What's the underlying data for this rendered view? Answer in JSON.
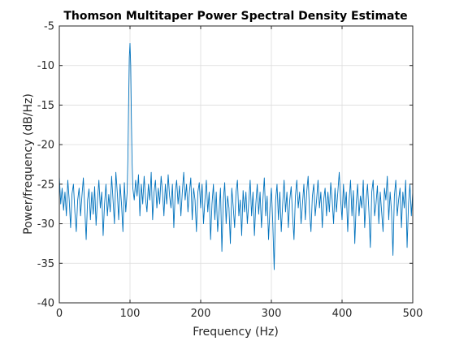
{
  "chart_data": {
    "type": "line",
    "title": "Thomson Multitaper Power Spectral Density Estimate",
    "xlabel": "Frequency (Hz)",
    "ylabel": "Power/frequency (dB/Hz)",
    "xlim": [
      0,
      500
    ],
    "ylim": [
      -40,
      -5
    ],
    "xticks": [
      0,
      100,
      200,
      300,
      400,
      500
    ],
    "yticks": [
      -40,
      -35,
      -30,
      -25,
      -20,
      -15,
      -10,
      -5
    ],
    "xtick_labels": [
      "0",
      "100",
      "200",
      "300",
      "400",
      "500"
    ],
    "ytick_labels": [
      "-40",
      "-35",
      "-30",
      "-25",
      "-20",
      "-15",
      "-10",
      "-5"
    ],
    "grid": true,
    "line_color": "#0072BD",
    "series": [
      {
        "x": [
          0,
          2,
          4,
          6,
          8,
          10,
          12,
          14,
          16,
          18,
          20,
          22,
          24,
          26,
          28,
          30,
          32,
          34,
          36,
          38,
          40,
          42,
          44,
          46,
          48,
          50,
          52,
          54,
          56,
          58,
          60,
          62,
          64,
          66,
          68,
          70,
          72,
          74,
          76,
          78,
          80,
          82,
          84,
          86,
          88,
          90,
          92,
          94,
          96,
          97,
          98,
          99,
          100,
          101,
          102,
          103,
          104,
          106,
          108,
          110,
          112,
          114,
          116,
          118,
          120,
          122,
          124,
          126,
          128,
          130,
          132,
          134,
          136,
          138,
          140,
          142,
          144,
          146,
          148,
          150,
          152,
          154,
          156,
          158,
          160,
          162,
          164,
          166,
          168,
          170,
          172,
          174,
          176,
          178,
          180,
          182,
          184,
          186,
          188,
          190,
          192,
          194,
          196,
          198,
          200,
          202,
          204,
          206,
          208,
          210,
          212,
          214,
          216,
          218,
          220,
          222,
          224,
          226,
          228,
          230,
          232,
          234,
          236,
          238,
          240,
          242,
          244,
          246,
          248,
          250,
          252,
          254,
          256,
          258,
          260,
          262,
          264,
          266,
          268,
          270,
          272,
          274,
          276,
          278,
          280,
          282,
          284,
          286,
          288,
          290,
          292,
          294,
          296,
          298,
          300,
          302,
          304,
          306,
          308,
          310,
          312,
          314,
          316,
          318,
          320,
          322,
          324,
          326,
          328,
          330,
          332,
          334,
          336,
          338,
          340,
          342,
          344,
          346,
          348,
          350,
          352,
          354,
          356,
          358,
          360,
          362,
          364,
          366,
          368,
          370,
          372,
          374,
          376,
          378,
          380,
          382,
          384,
          386,
          388,
          390,
          392,
          394,
          396,
          398,
          400,
          402,
          404,
          406,
          408,
          410,
          412,
          414,
          416,
          418,
          420,
          422,
          424,
          426,
          428,
          430,
          432,
          434,
          436,
          438,
          440,
          442,
          444,
          446,
          448,
          450,
          452,
          454,
          456,
          458,
          460,
          462,
          464,
          466,
          468,
          470,
          472,
          474,
          476,
          478,
          480,
          482,
          484,
          486,
          488,
          490,
          492,
          494,
          496,
          498,
          500
        ],
        "y": [
          -24,
          -27.5,
          -25.5,
          -28.3,
          -26,
          -29,
          -24.5,
          -27,
          -30.5,
          -26.2,
          -25,
          -28.5,
          -31,
          -27,
          -25.5,
          -29,
          -26.5,
          -24.2,
          -28,
          -32,
          -27,
          -25.6,
          -29.5,
          -26,
          -28.8,
          -25.3,
          -30.2,
          -27,
          -24.5,
          -28,
          -26,
          -31.5,
          -27.5,
          -25,
          -29,
          -26.3,
          -28.5,
          -24,
          -27,
          -30,
          -23.5,
          -26,
          -29.5,
          -25,
          -27.5,
          -31,
          -24.8,
          -28.5,
          -26,
          -22,
          -15,
          -9,
          -7.2,
          -10,
          -17,
          -22.5,
          -25.5,
          -27,
          -24.5,
          -26.5,
          -23.8,
          -29,
          -25,
          -27.5,
          -24,
          -26.8,
          -28.5,
          -25,
          -27,
          -23.5,
          -29.5,
          -26,
          -24.5,
          -28,
          -25.5,
          -27.5,
          -24,
          -26,
          -29,
          -25,
          -27.5,
          -23.8,
          -26.5,
          -28,
          -25,
          -30.5,
          -26,
          -24.5,
          -27.5,
          -25.2,
          -29,
          -26,
          -23.5,
          -27,
          -25,
          -28.5,
          -26,
          -24.2,
          -29.5,
          -25.5,
          -27,
          -31,
          -26,
          -24.8,
          -28,
          -25,
          -30,
          -27,
          -24.5,
          -28.5,
          -26,
          -32,
          -27.5,
          -25,
          -29.5,
          -26,
          -31,
          -28.5,
          -25.5,
          -33.5,
          -27,
          -24.8,
          -30,
          -26.5,
          -28,
          -32.5,
          -25.5,
          -27.8,
          -30.5,
          -26,
          -24.5,
          -29,
          -27,
          -31.5,
          -25.8,
          -28.5,
          -26,
          -30,
          -27.3,
          -24.5,
          -29,
          -26,
          -31.5,
          -27.5,
          -25,
          -28.8,
          -26,
          -30.5,
          -27,
          -24.2,
          -29,
          -26.5,
          -32,
          -28,
          -25.5,
          -30,
          -35.8,
          -27,
          -25,
          -29.5,
          -26,
          -31,
          -27.5,
          -24.5,
          -28.5,
          -26,
          -30.5,
          -27,
          -25.3,
          -29,
          -32,
          -26.5,
          -24.5,
          -28,
          -26,
          -30,
          -27.5,
          -25,
          -29.5,
          -26,
          -24,
          -28.5,
          -31,
          -26.5,
          -25,
          -29,
          -27,
          -24.5,
          -28,
          -26,
          -30.5,
          -27,
          -25.5,
          -29,
          -26,
          -28.5,
          -24.8,
          -27,
          -30,
          -25.5,
          -28.5,
          -26,
          -23.5,
          -27,
          -29.5,
          -25,
          -28,
          -26,
          -31,
          -27,
          -24.5,
          -29,
          -25.8,
          -32.5,
          -27.5,
          -25,
          -29,
          -26.5,
          -28,
          -24.5,
          -30.5,
          -27,
          -25,
          -28.5,
          -33,
          -26,
          -24.5,
          -29,
          -27.5,
          -25.2,
          -30,
          -26,
          -28.5,
          -31,
          -25.5,
          -27,
          -24,
          -29.5,
          -26,
          -28.5,
          -34,
          -26.5,
          -24.5,
          -29,
          -27,
          -25.5,
          -30.5,
          -26,
          -28,
          -24.5,
          -33,
          -27.5,
          -25,
          -29,
          -26
        ]
      }
    ]
  }
}
